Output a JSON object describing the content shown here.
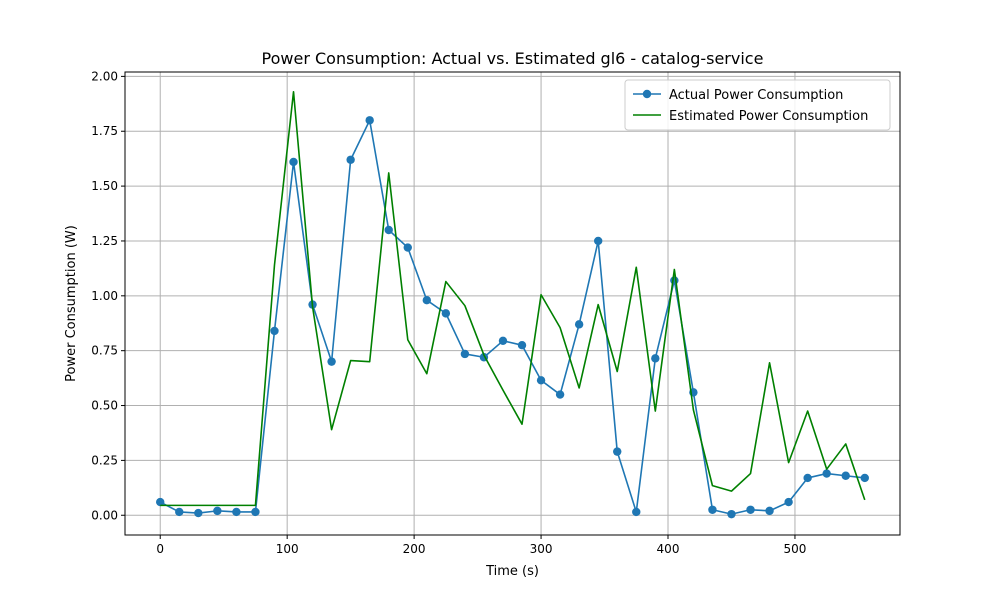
{
  "chart_data": {
    "type": "line",
    "title": "Power Consumption: Actual vs. Estimated gl6 - catalog-service",
    "xlabel": "Time (s)",
    "ylabel": "Power Consumption (W)",
    "xlim": [
      -27.75,
      582.75
    ],
    "ylim": [
      -0.09,
      2.02
    ],
    "xticks": [
      0,
      100,
      200,
      300,
      400,
      500
    ],
    "yticks": [
      0.0,
      0.25,
      0.5,
      0.75,
      1.0,
      1.25,
      1.5,
      1.75,
      2.0
    ],
    "xtick_labels": [
      "0",
      "100",
      "200",
      "300",
      "400",
      "500"
    ],
    "ytick_labels": [
      "0.00",
      "0.25",
      "0.50",
      "0.75",
      "1.00",
      "1.25",
      "1.50",
      "1.75",
      "2.00"
    ],
    "grid": true,
    "legend_position": "top-right",
    "x": [
      0,
      15,
      30,
      45,
      60,
      75,
      90,
      105,
      120,
      135,
      150,
      165,
      180,
      195,
      210,
      225,
      240,
      255,
      270,
      285,
      300,
      315,
      330,
      345,
      360,
      375,
      390,
      405,
      420,
      435,
      450,
      465,
      480,
      495,
      510,
      525,
      540,
      555
    ],
    "series": [
      {
        "name": "Actual Power Consumption",
        "color": "#1f77b4",
        "marker": "circle",
        "values": [
          0.06,
          0.015,
          0.01,
          0.02,
          0.015,
          0.015,
          0.84,
          1.61,
          0.96,
          0.7,
          1.62,
          1.8,
          1.3,
          1.22,
          0.98,
          0.92,
          0.735,
          0.72,
          0.795,
          0.775,
          0.615,
          0.55,
          0.87,
          1.25,
          0.29,
          0.015,
          0.715,
          1.07,
          0.56,
          0.025,
          0.005,
          0.025,
          0.02,
          0.06,
          0.17,
          0.19,
          0.18,
          0.17
        ]
      },
      {
        "name": "Estimated Power Consumption",
        "color": "#008000",
        "marker": "none",
        "values": [
          0.045,
          0.045,
          0.045,
          0.045,
          0.045,
          0.045,
          1.14,
          1.93,
          0.95,
          0.39,
          0.705,
          0.7,
          1.56,
          0.8,
          0.645,
          1.065,
          0.955,
          0.73,
          0.57,
          0.415,
          1.005,
          0.855,
          0.58,
          0.96,
          0.655,
          1.13,
          0.475,
          1.12,
          0.48,
          0.135,
          0.11,
          0.19,
          0.695,
          0.24,
          0.475,
          0.21,
          0.325,
          0.07
        ]
      }
    ]
  }
}
